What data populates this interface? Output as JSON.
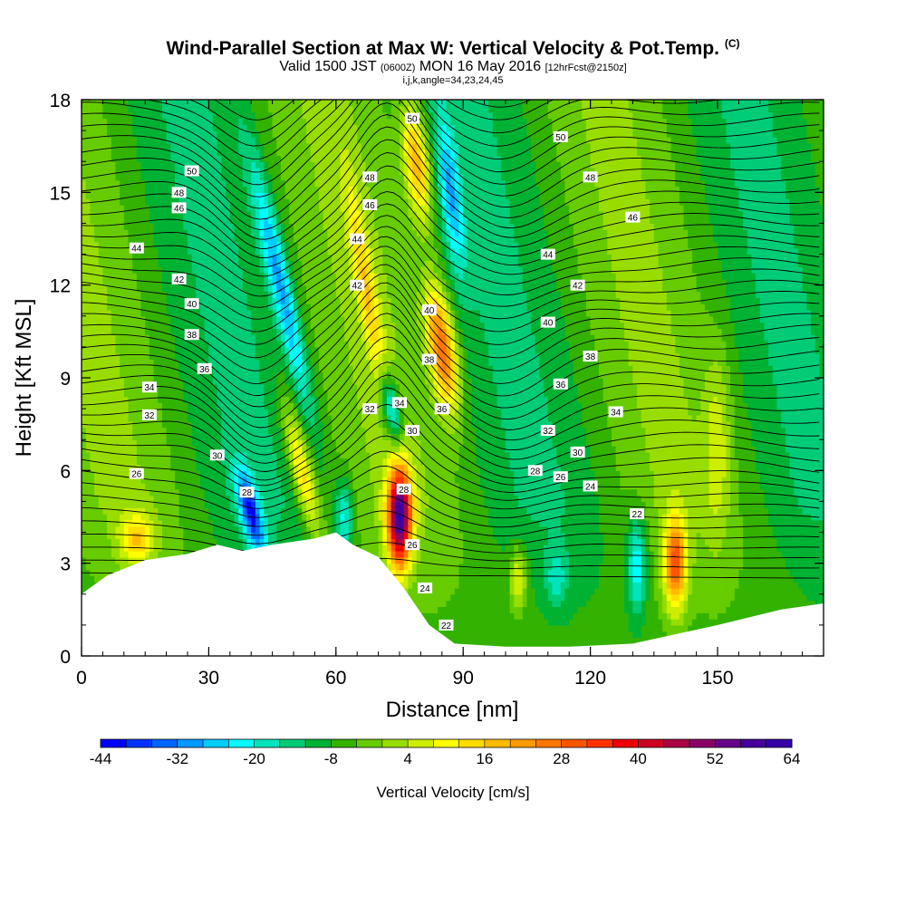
{
  "title": {
    "main": "Wind-Parallel Section at Max W: Vertical Velocity & Pot.Temp.",
    "copyright": "(C)",
    "valid_prefix": "Valid 1500 JST",
    "valid_utc": "(0600Z)",
    "valid_date": "MON 16 May 2016",
    "forecast": "[12hrFcst@2150z]",
    "indices": "i,j,k,angle=34,23,24,45"
  },
  "chart_data": {
    "type": "heatmap",
    "xlabel": "Distance [nm]",
    "ylabel": "Height [Kft MSL]",
    "xlim": [
      0,
      175
    ],
    "ylim": [
      0,
      18
    ],
    "x_ticks": [
      0,
      30,
      60,
      90,
      120,
      150
    ],
    "y_ticks": [
      0,
      3,
      6,
      9,
      12,
      15,
      18
    ],
    "grid": false,
    "colorbar": {
      "title": "Vertical Velocity [cm/s]",
      "placement": "bottom",
      "min": -44,
      "max": 64,
      "step": 4,
      "tick_values": [
        -44,
        -32,
        -20,
        -8,
        4,
        16,
        28,
        40,
        52,
        64
      ],
      "colors": [
        "#0000ff",
        "#0033ff",
        "#0066ff",
        "#0099ff",
        "#00ccff",
        "#00ffff",
        "#00e5bb",
        "#00cc77",
        "#00b233",
        "#33b200",
        "#66cc00",
        "#99dd00",
        "#ccee00",
        "#ffff00",
        "#ffdd00",
        "#ffbb00",
        "#ff9900",
        "#ff7700",
        "#ff5500",
        "#ff3300",
        "#ee0000",
        "#cc0022",
        "#aa0044",
        "#880066",
        "#660088",
        "#440099",
        "#3300aa"
      ]
    },
    "fields": {
      "filled": "Vertical Velocity",
      "filled_units": "cm/s",
      "contours": "Pot.Temp.",
      "contour_levels": [
        22,
        24,
        26,
        28,
        30,
        32,
        34,
        36,
        38,
        40,
        42,
        44,
        46,
        48,
        50
      ]
    },
    "contour_labels": [
      {
        "value": "50",
        "x": 26,
        "y": 15.7
      },
      {
        "value": "48",
        "x": 23,
        "y": 15.0
      },
      {
        "value": "46",
        "x": 23,
        "y": 14.5
      },
      {
        "value": "44",
        "x": 13,
        "y": 13.2
      },
      {
        "value": "42",
        "x": 23,
        "y": 12.2
      },
      {
        "value": "40",
        "x": 26,
        "y": 11.4
      },
      {
        "value": "38",
        "x": 26,
        "y": 10.4
      },
      {
        "value": "36",
        "x": 29,
        "y": 9.3
      },
      {
        "value": "34",
        "x": 16,
        "y": 8.7
      },
      {
        "value": "32",
        "x": 16,
        "y": 7.8
      },
      {
        "value": "30",
        "x": 32,
        "y": 6.5
      },
      {
        "value": "26",
        "x": 13,
        "y": 5.9
      },
      {
        "value": "28",
        "x": 39,
        "y": 5.3
      },
      {
        "value": "50",
        "x": 78,
        "y": 17.4
      },
      {
        "value": "48",
        "x": 68,
        "y": 15.5
      },
      {
        "value": "46",
        "x": 68,
        "y": 14.6
      },
      {
        "value": "44",
        "x": 65,
        "y": 13.5
      },
      {
        "value": "42",
        "x": 65,
        "y": 12.0
      },
      {
        "value": "40",
        "x": 82,
        "y": 11.2
      },
      {
        "value": "38",
        "x": 82,
        "y": 9.6
      },
      {
        "value": "36",
        "x": 85,
        "y": 8.0
      },
      {
        "value": "34",
        "x": 75,
        "y": 8.2
      },
      {
        "value": "32",
        "x": 68,
        "y": 8.0
      },
      {
        "value": "30",
        "x": 78,
        "y": 7.3
      },
      {
        "value": "28",
        "x": 76,
        "y": 5.4
      },
      {
        "value": "26",
        "x": 78,
        "y": 3.6
      },
      {
        "value": "24",
        "x": 81,
        "y": 2.2
      },
      {
        "value": "22",
        "x": 86,
        "y": 1.0
      },
      {
        "value": "50",
        "x": 113,
        "y": 16.8
      },
      {
        "value": "48",
        "x": 120,
        "y": 15.5
      },
      {
        "value": "46",
        "x": 130,
        "y": 14.2
      },
      {
        "value": "44",
        "x": 110,
        "y": 13.0
      },
      {
        "value": "42",
        "x": 117,
        "y": 12.0
      },
      {
        "value": "40",
        "x": 110,
        "y": 10.8
      },
      {
        "value": "38",
        "x": 120,
        "y": 9.7
      },
      {
        "value": "36",
        "x": 113,
        "y": 8.8
      },
      {
        "value": "34",
        "x": 126,
        "y": 7.9
      },
      {
        "value": "32",
        "x": 110,
        "y": 7.3
      },
      {
        "value": "30",
        "x": 117,
        "y": 6.6
      },
      {
        "value": "28",
        "x": 107,
        "y": 6.0
      },
      {
        "value": "26",
        "x": 113,
        "y": 5.8
      },
      {
        "value": "24",
        "x": 120,
        "y": 5.5
      },
      {
        "value": "22",
        "x": 131,
        "y": 4.6
      }
    ],
    "terrain": [
      [
        0,
        2.0
      ],
      [
        6,
        2.6
      ],
      [
        15,
        3.1
      ],
      [
        25,
        3.3
      ],
      [
        32,
        3.6
      ],
      [
        38,
        3.4
      ],
      [
        45,
        3.6
      ],
      [
        55,
        3.8
      ],
      [
        60,
        4.0
      ],
      [
        64,
        3.6
      ],
      [
        70,
        3.2
      ],
      [
        76,
        2.2
      ],
      [
        82,
        1.0
      ],
      [
        88,
        0.4
      ],
      [
        100,
        0.3
      ],
      [
        115,
        0.3
      ],
      [
        130,
        0.4
      ],
      [
        140,
        0.7
      ],
      [
        150,
        1.0
      ],
      [
        165,
        1.5
      ],
      [
        175,
        1.7
      ]
    ],
    "w_features": [
      {
        "x": 75,
        "y": 4.5,
        "value": 60
      },
      {
        "x": 85,
        "y": 10.0,
        "value": 36
      },
      {
        "x": 80,
        "y": 16.5,
        "value": 28
      },
      {
        "x": 40,
        "y": 4.6,
        "value": -28
      },
      {
        "x": 140,
        "y": 3.0,
        "value": 34
      },
      {
        "x": 131,
        "y": 3.0,
        "value": -16
      },
      {
        "x": 103,
        "y": 2.5,
        "value": 16
      }
    ]
  }
}
